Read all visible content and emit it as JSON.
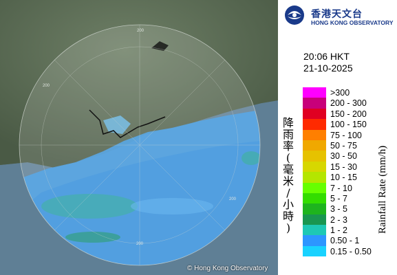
{
  "logo": {
    "name_zh": "香港天文台",
    "name_en": "HONG KONG OBSERVATORY",
    "icon": "hko-logo-icon"
  },
  "timestamp": {
    "time": "20:06 HKT",
    "date": "21-10-2025"
  },
  "legend": {
    "title_en": "Rainfall Rate (mm/h)",
    "title_zh": "降雨率(毫米/小時)",
    "items": [
      {
        "label": ">300",
        "color": "#ff00ff"
      },
      {
        "label": "200 - 300",
        "color": "#c8007a"
      },
      {
        "label": "150 - 200",
        "color": "#e00022"
      },
      {
        "label": "100 - 150",
        "color": "#ff2a00"
      },
      {
        "label": "75 - 100",
        "color": "#ff7f00"
      },
      {
        "label": "50 - 75",
        "color": "#f0a800"
      },
      {
        "label": "30 - 50",
        "color": "#e6c200"
      },
      {
        "label": "15 - 30",
        "color": "#d7d700"
      },
      {
        "label": "10 - 15",
        "color": "#b4e600"
      },
      {
        "label": "7 - 10",
        "color": "#66ff00"
      },
      {
        "label": "5 - 7",
        "color": "#33dd00"
      },
      {
        "label": "3 - 5",
        "color": "#1eb41e"
      },
      {
        "label": "2 - 3",
        "color": "#199650"
      },
      {
        "label": "1 - 2",
        "color": "#1ec8b4"
      },
      {
        "label": "0.50 - 1",
        "color": "#2d96ff"
      },
      {
        "label": "0.15 - 0.50",
        "color": "#19d2ff"
      }
    ]
  },
  "map": {
    "range_ring_labels": [
      "200",
      "200",
      "200",
      "200"
    ],
    "copyright": "© Hong Kong Observatory"
  }
}
